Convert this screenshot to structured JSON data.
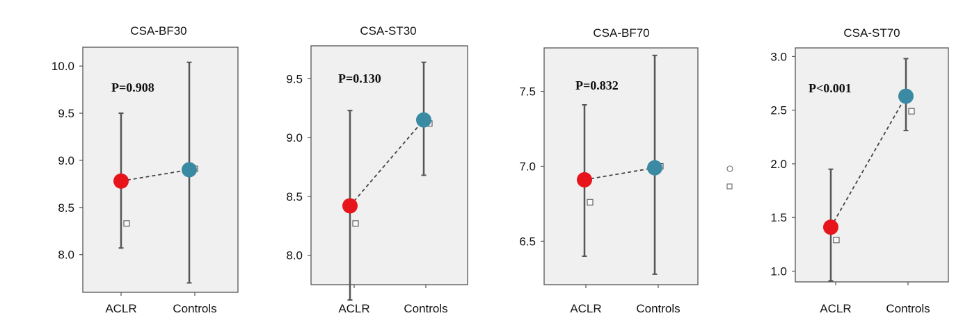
{
  "colors": {
    "aclr": "#e8141c",
    "controls": "#3a8aa3",
    "whisker": "#555555",
    "frame": "#555555",
    "plot_bg": "#f0f0f0"
  },
  "legend_icons": [
    "circle-marker-icon",
    "square-marker-icon"
  ],
  "chart_data": [
    {
      "type": "scatter",
      "title": "CSA-BF30",
      "categories": [
        "ACLR",
        "Controls"
      ],
      "annotation": "P=0.908",
      "yticks": [
        "8.0",
        "8.5",
        "9.0",
        "9.5",
        "10.0"
      ],
      "ylim": [
        7.6,
        10.2
      ],
      "means": [
        8.78,
        8.9
      ],
      "error_low": [
        8.07,
        7.7
      ],
      "error_high": [
        9.5,
        10.04
      ],
      "square_markers": [
        8.33,
        8.91
      ]
    },
    {
      "type": "scatter",
      "title": "CSA-ST30",
      "categories": [
        "ACLR",
        "Controls"
      ],
      "annotation": "P=0.130",
      "yticks": [
        "8.0",
        "8.5",
        "9.0",
        "9.5"
      ],
      "ylim": [
        7.75,
        9.78
      ],
      "means": [
        8.42,
        9.15
      ],
      "error_low": [
        7.62,
        8.68
      ],
      "error_high": [
        9.23,
        9.64
      ],
      "square_markers": [
        8.27,
        9.12
      ]
    },
    {
      "type": "scatter",
      "title": "CSA-BF70",
      "categories": [
        "ACLR",
        "Controls"
      ],
      "annotation": "P=0.832",
      "yticks": [
        "6.5",
        "7.0",
        "7.5"
      ],
      "ylim": [
        6.21,
        7.79
      ],
      "means": [
        6.91,
        6.99
      ],
      "error_low": [
        6.4,
        6.28
      ],
      "error_high": [
        7.41,
        7.74
      ],
      "square_markers": [
        6.76,
        7.0
      ]
    },
    {
      "type": "scatter",
      "title": "CSA-ST70",
      "categories": [
        "ACLR",
        "Controls"
      ],
      "annotation": "P<0.001",
      "yticks": [
        "1.0",
        "1.5",
        "2.0",
        "2.5",
        "3.0"
      ],
      "ylim": [
        0.9,
        3.08
      ],
      "means": [
        1.41,
        2.63
      ],
      "error_low": [
        0.91,
        2.31
      ],
      "error_high": [
        1.95,
        2.98
      ],
      "square_markers": [
        1.29,
        2.49
      ]
    }
  ]
}
